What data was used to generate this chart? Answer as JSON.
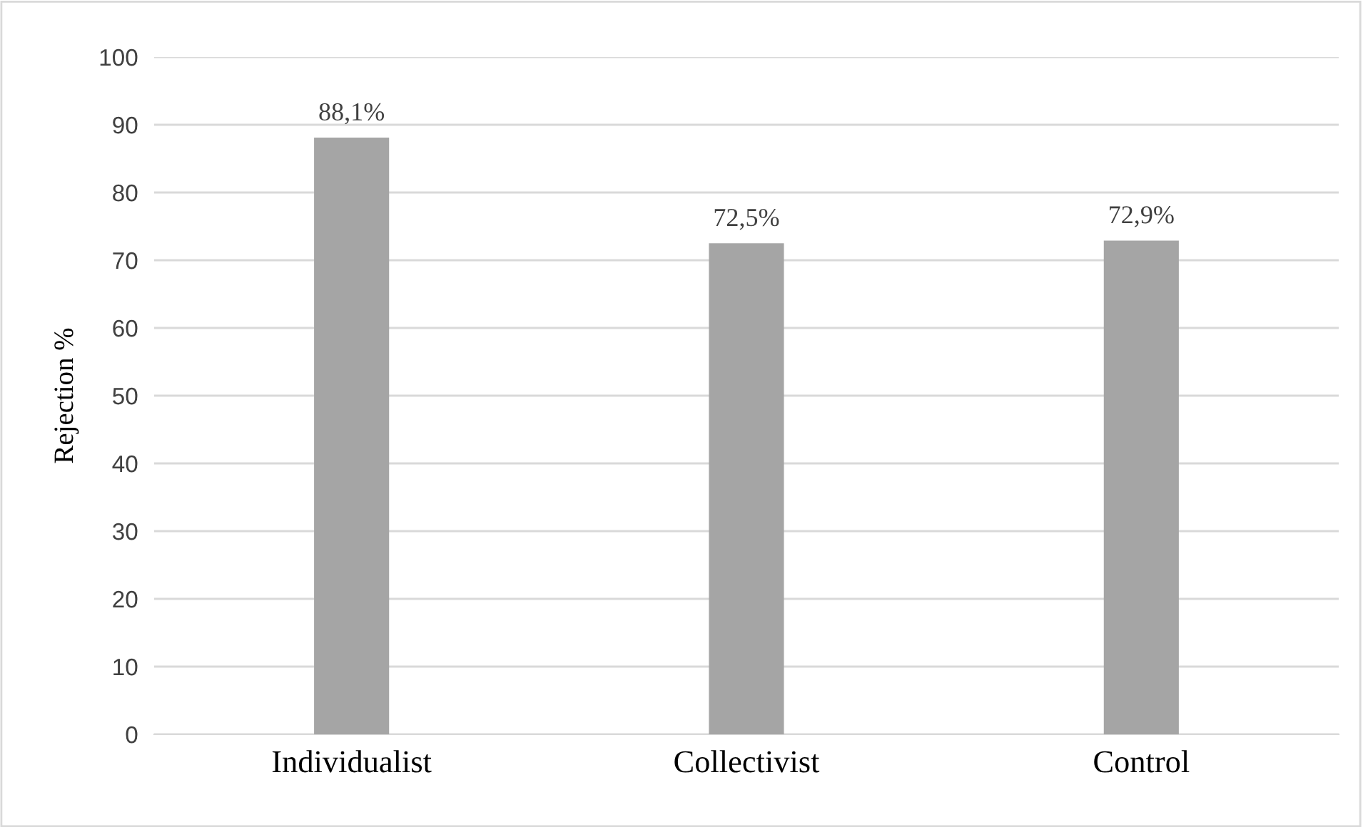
{
  "chart_data": {
    "type": "bar",
    "ylabel": "Rejection %",
    "categories": [
      "Individualist",
      "Collectivist",
      "Control"
    ],
    "values": [
      88.1,
      72.5,
      72.9
    ],
    "value_labels": [
      "88,1%",
      "72,5%",
      "72,9%"
    ],
    "color": "#a5a5a5",
    "ylim": [
      0,
      100
    ],
    "yticks": [
      0,
      10,
      20,
      30,
      40,
      50,
      60,
      70,
      80,
      90,
      100
    ],
    "grid": "y",
    "legend": false
  }
}
